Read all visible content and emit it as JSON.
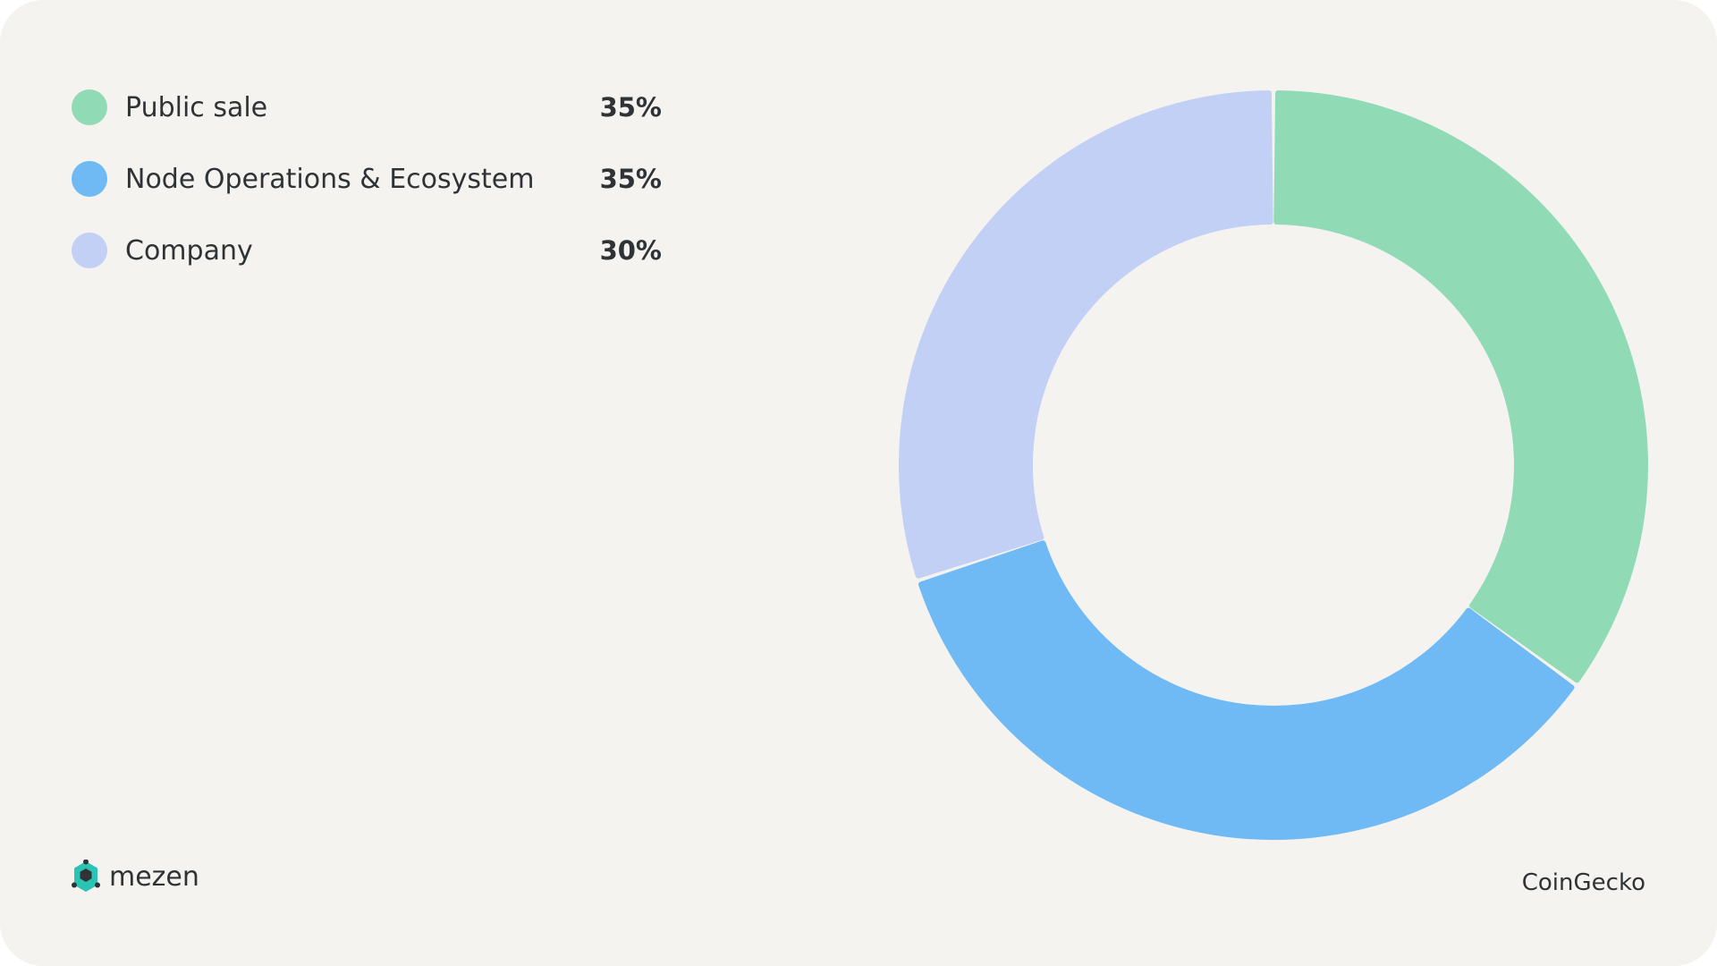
{
  "chart_data": {
    "type": "pie",
    "categories": [
      "Public sale",
      "Node Operations & Ecosystem",
      "Company"
    ],
    "values": [
      35,
      35,
      30
    ],
    "value_labels": [
      "35%",
      "35%",
      "30%"
    ],
    "colors": [
      "#90dbb6",
      "#6fbaf5",
      "#c3d0f5"
    ],
    "legend_placement": "left"
  },
  "brand": {
    "logo_text": "mezen",
    "logo_icon": "mezen-logo-icon",
    "logo_color": "#2bc4b4"
  },
  "source": {
    "text": "CoinGecko"
  }
}
